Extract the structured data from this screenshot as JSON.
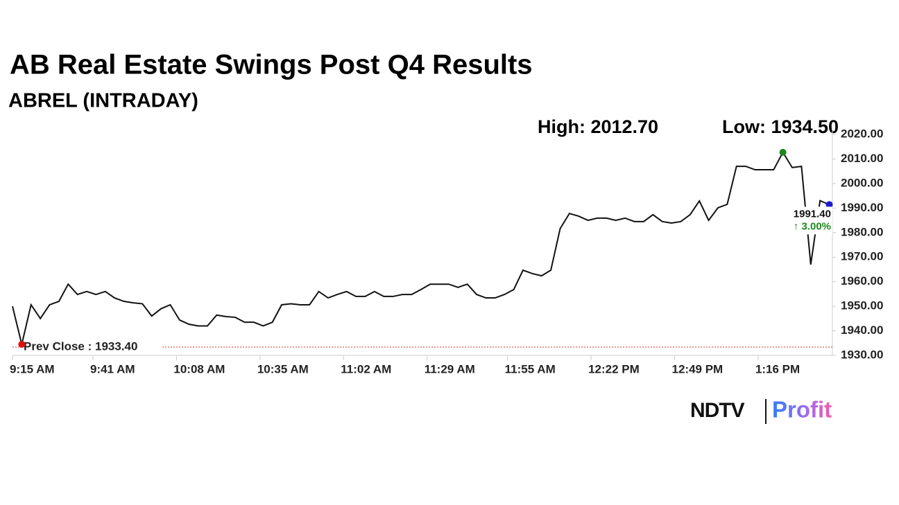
{
  "chart_data": {
    "type": "line",
    "title": "AB Real Estate Swings Post Q4 Results",
    "subtitle": "ABREL (INTRADAY)",
    "high": {
      "value": 2012.7,
      "label": "High: 2012.70"
    },
    "low": {
      "value": 1934.5,
      "label": "Low: 1934.50"
    },
    "prev_close": {
      "value": 1933.4,
      "label": "Prev Close : 1933.40"
    },
    "last": {
      "value": 1991.4,
      "label": "1991.40"
    },
    "change": {
      "value": 3,
      "label": "↑ 3.00%"
    },
    "color": "#111111",
    "x": [
      555,
      558,
      561,
      564,
      567,
      570,
      573,
      576,
      579,
      582,
      585,
      588,
      591,
      594,
      597,
      600,
      603,
      606,
      609,
      612,
      615,
      618,
      621,
      624,
      627,
      630,
      633,
      636,
      639,
      642,
      645,
      648,
      651,
      654,
      657,
      660,
      663,
      666,
      669,
      672,
      675,
      678,
      681,
      684,
      687,
      690,
      693,
      696,
      699,
      702,
      705,
      708,
      711,
      714,
      717,
      720,
      723,
      726,
      729,
      732,
      735,
      738,
      741,
      744,
      747,
      750,
      753,
      756,
      759,
      762,
      765,
      768,
      771,
      774,
      777,
      780,
      783,
      786,
      789,
      792,
      795,
      798,
      801,
      804,
      807,
      810,
      813,
      816,
      819
    ],
    "values": [
      1950,
      1934.5,
      1950.6,
      1945,
      1950.6,
      1952,
      1959,
      1954.8,
      1956,
      1954.8,
      1956,
      1953.4,
      1952,
      1951.4,
      1951,
      1946,
      1949,
      1950.6,
      1944.4,
      1942.7,
      1942,
      1942,
      1946.4,
      1945.8,
      1945.5,
      1943.5,
      1943.5,
      1942,
      1943.5,
      1950.6,
      1951,
      1950.6,
      1950.6,
      1956,
      1953.4,
      1954.8,
      1956,
      1954,
      1954,
      1956,
      1954,
      1954,
      1954.8,
      1954.8,
      1956.8,
      1959,
      1959,
      1959,
      1957.7,
      1959,
      1954.8,
      1953.4,
      1953.4,
      1954.8,
      1956.8,
      1964.7,
      1963.3,
      1962.4,
      1964.7,
      1981.6,
      1987.8,
      1986.7,
      1985,
      1985.9,
      1985.9,
      1985,
      1985.9,
      1984.5,
      1984.5,
      1987.3,
      1984.5,
      1983.9,
      1984.5,
      1987.3,
      1992.9,
      1985,
      1990.1,
      1991.5,
      2007,
      2007,
      2005.6,
      2005.6,
      2005.6,
      2012.7,
      2006.5,
      2007,
      1967,
      1993,
      1991.4
    ],
    "xlim": [
      555,
      820
    ],
    "xticks": [
      {
        "value": 555,
        "label": "9:15 AM"
      },
      {
        "value": 581,
        "label": "9:41 AM"
      },
      {
        "value": 608,
        "label": "10:08 AM"
      },
      {
        "value": 635,
        "label": "10:35 AM"
      },
      {
        "value": 662,
        "label": "11:02 AM"
      },
      {
        "value": 689,
        "label": "11:29 AM"
      },
      {
        "value": 715,
        "label": "11:55 AM"
      },
      {
        "value": 742,
        "label": "12:22 PM"
      },
      {
        "value": 769,
        "label": "12:49 PM"
      },
      {
        "value": 796,
        "label": "1:16 PM"
      }
    ],
    "ylim": [
      1930,
      2020
    ],
    "yticks": [
      {
        "value": 1930,
        "label": "1930.00"
      },
      {
        "value": 1940,
        "label": "1940.00"
      },
      {
        "value": 1950,
        "label": "1950.00"
      },
      {
        "value": 1960,
        "label": "1960.00"
      },
      {
        "value": 1970,
        "label": "1970.00"
      },
      {
        "value": 1980,
        "label": "1980.00"
      },
      {
        "value": 1990,
        "label": "1990.00"
      },
      {
        "value": 2000,
        "label": "2000.00"
      },
      {
        "value": 2010,
        "label": "2010.00"
      },
      {
        "value": 2020,
        "label": "2020.00"
      }
    ],
    "logo": {
      "brand": "NDTV",
      "product": "Profit"
    }
  }
}
